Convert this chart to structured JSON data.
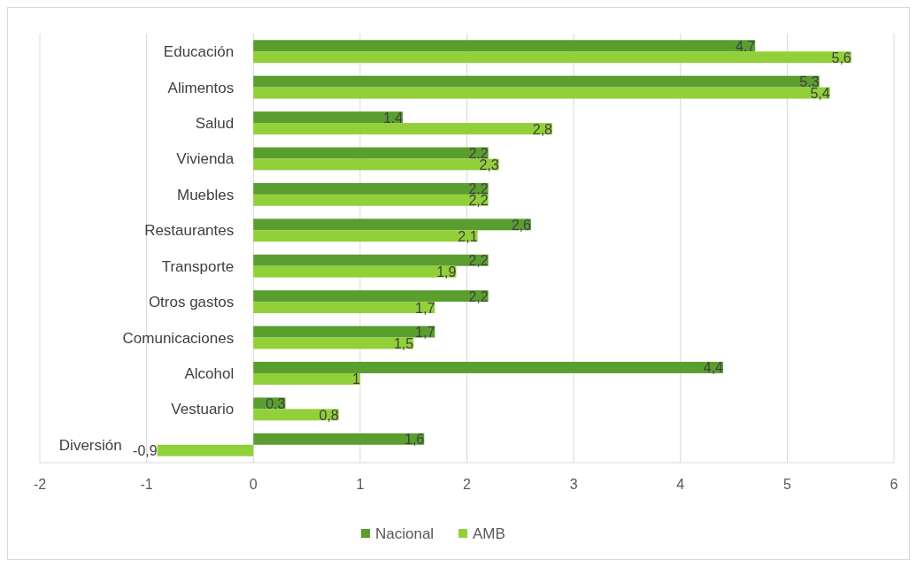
{
  "chart_data": {
    "type": "bar",
    "orientation": "horizontal",
    "categories": [
      "Educación",
      "Alimentos",
      "Salud",
      "Vivienda",
      "Muebles",
      "Restaurantes",
      "Transporte",
      "Otros gastos",
      "Comunicaciones",
      "Alcohol",
      "Vestuario",
      "Diversión"
    ],
    "series": [
      {
        "name": "Nacional",
        "color": "#5a9e2f",
        "values": [
          4.7,
          5.3,
          1.4,
          2.2,
          2.2,
          2.6,
          2.2,
          2.2,
          1.7,
          4.4,
          0.3,
          1.6
        ],
        "value_labels": [
          "4,7",
          "5,3",
          "1,4",
          "2,2",
          "2,2",
          "2,6",
          "2,2",
          "2,2",
          "1,7",
          "4,4",
          "0,3",
          "1,6"
        ]
      },
      {
        "name": "AMB",
        "color": "#92d03a",
        "values": [
          5.6,
          5.4,
          2.8,
          2.3,
          2.2,
          2.1,
          1.9,
          1.7,
          1.5,
          1,
          0.8,
          -0.9
        ],
        "value_labels": [
          "5,6",
          "5,4",
          "2,8",
          "2,3",
          "2,2",
          "2,1",
          "1,9",
          "1,7",
          "1,5",
          "1",
          "0,8",
          "-0,9"
        ]
      }
    ],
    "xlim": [
      -2,
      6
    ],
    "xticks": [
      -2,
      -1,
      0,
      1,
      2,
      3,
      4,
      5,
      6
    ],
    "grid": "x",
    "legend": "bottom"
  }
}
